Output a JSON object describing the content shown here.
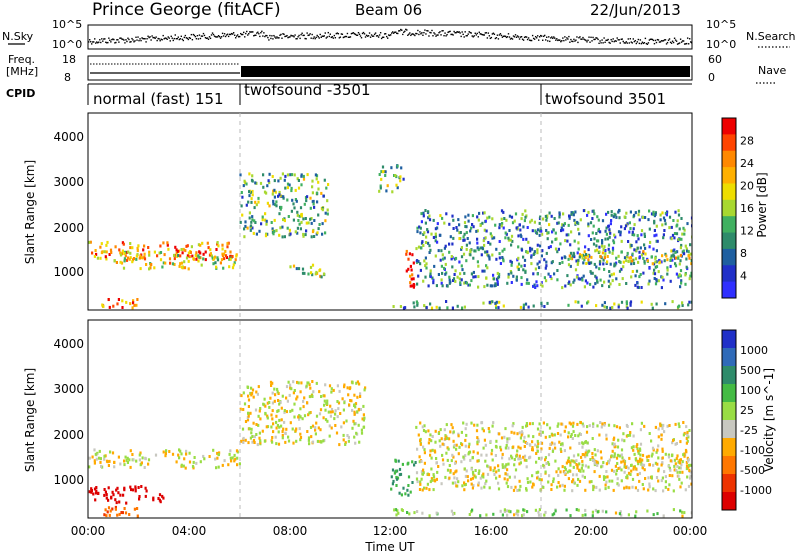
{
  "header": {
    "station": "Prince George (fitACF)",
    "beam": "Beam 06",
    "date": "22/Jun/2013"
  },
  "top_panels": {
    "nsky_label": "N.Sky",
    "nsky_ticks": [
      "10^5",
      "10^0"
    ],
    "nsearch_label": "N.Search",
    "nsearch_ticks": [
      "10^5",
      "10^0"
    ],
    "freq_label_1": "Freq.",
    "freq_label_2": "[MHz]",
    "freq_ticks": [
      "18",
      "8"
    ],
    "nave_label": "Nave",
    "nave_ticks": [
      "60",
      "0"
    ],
    "cpid_label": "CPID",
    "modes": [
      {
        "name": "normal (fast) 151",
        "start_hour": 0
      },
      {
        "name": "twofsound -3501",
        "start_hour": 6
      },
      {
        "name": "twofsound 3501",
        "start_hour": 18
      }
    ]
  },
  "chart_data": [
    {
      "type": "heatmap",
      "title": "",
      "xlabel": "",
      "ylabel": "Slant Range [km]",
      "xlim": [
        0,
        24
      ],
      "ylim": [
        180,
        4500
      ],
      "y_ticks": [
        "1000",
        "2000",
        "3000",
        "4000"
      ],
      "colorbar_label": "Power [dB]",
      "colorbar_ticks": [
        "28",
        "24",
        "20",
        "16",
        "12",
        "8",
        "4"
      ],
      "colorbar_colors": [
        "#ee0000",
        "#ff4400",
        "#ff8800",
        "#ffb000",
        "#eedd00",
        "#a8d830",
        "#40b060",
        "#2e8b6a",
        "#1e5fa0",
        "#2030c8",
        "#3030ff"
      ],
      "bands": [
        {
          "x": [
            0,
            6
          ],
          "y": [
            1300,
            1700
          ],
          "intensity": 0.75
        },
        {
          "x": [
            1,
            6
          ],
          "y": [
            1100,
            1500
          ],
          "intensity": 0.6
        },
        {
          "x": [
            0.5,
            2
          ],
          "y": [
            250,
            450
          ],
          "intensity": 0.8
        },
        {
          "x": [
            6,
            9.5
          ],
          "y": [
            1800,
            3200
          ],
          "intensity": 0.4
        },
        {
          "x": [
            8,
            9.5
          ],
          "y": [
            900,
            1200
          ],
          "intensity": 0.5
        },
        {
          "x": [
            11.5,
            12.5
          ],
          "y": [
            2800,
            3400
          ],
          "intensity": 0.4
        },
        {
          "x": [
            12.6,
            13.0
          ],
          "y": [
            700,
            1500
          ],
          "intensity": 0.95
        },
        {
          "x": [
            12,
            24
          ],
          "y": [
            250,
            400
          ],
          "intensity": 0.35
        },
        {
          "x": [
            13,
            24
          ],
          "y": [
            700,
            2400
          ],
          "intensity": 0.3
        },
        {
          "x": [
            19,
            24
          ],
          "y": [
            1200,
            1500
          ],
          "intensity": 0.55
        }
      ]
    },
    {
      "type": "heatmap",
      "title": "",
      "xlabel": "Time UT",
      "ylabel": "Slant Range [km]",
      "xlim": [
        0,
        24
      ],
      "ylim": [
        180,
        4500
      ],
      "x_ticks": [
        "00:00",
        "04:00",
        "08:00",
        "12:00",
        "16:00",
        "20:00",
        "00:00"
      ],
      "y_ticks": [
        "1000",
        "2000",
        "3000",
        "4000"
      ],
      "colorbar_label": "Velocity [m s^-1]",
      "colorbar_ticks": [
        "1000",
        "500",
        "100",
        "25",
        "-25",
        "-100",
        "-500",
        "-1000"
      ],
      "colorbar_colors": [
        "#2030c8",
        "#2f6ab8",
        "#2e8b6a",
        "#44bb44",
        "#99dd44",
        "#c8c8c0",
        "#ffaa00",
        "#ff7700",
        "#ee3300",
        "#dd0000"
      ],
      "bands": [
        {
          "x": [
            0,
            6
          ],
          "y": [
            1300,
            1700
          ],
          "v": 0
        },
        {
          "x": [
            6,
            11
          ],
          "y": [
            1800,
            3200
          ],
          "v": 0
        },
        {
          "x": [
            0,
            3
          ],
          "y": [
            500,
            900
          ],
          "v": -600
        },
        {
          "x": [
            0.5,
            2
          ],
          "y": [
            250,
            450
          ],
          "v": -200
        },
        {
          "x": [
            12,
            13
          ],
          "y": [
            700,
            1500
          ],
          "v": 250
        },
        {
          "x": [
            12,
            24
          ],
          "y": [
            250,
            400
          ],
          "v": 60
        },
        {
          "x": [
            13,
            24
          ],
          "y": [
            800,
            2300
          ],
          "v": 0
        },
        {
          "x": [
            19,
            24
          ],
          "y": [
            1200,
            1600
          ],
          "v": 0
        }
      ]
    }
  ]
}
